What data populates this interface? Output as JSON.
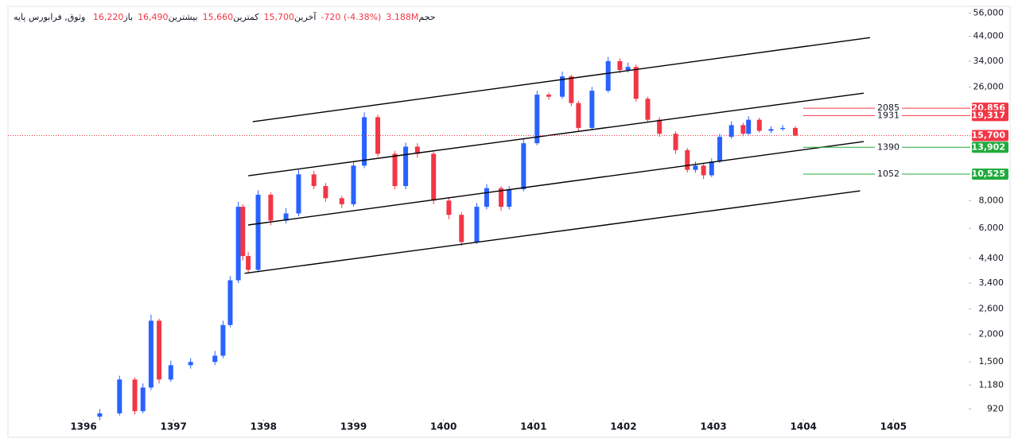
{
  "chart_data": {
    "type": "candlestick",
    "symbol": "وثوق, فرابورس پایه",
    "header": [
      {
        "value": "16,220",
        "label": "باز"
      },
      {
        "value": "16,490",
        "label": "بیشترین"
      },
      {
        "value": "15,660",
        "label": "کمترین"
      },
      {
        "value": "15,700",
        "label": "آخرین"
      },
      {
        "value": "-720 (-4.38%)"
      },
      {
        "value": "3.188M",
        "label": "حجم"
      }
    ],
    "x": [
      1396.18,
      1396.4,
      1396.57,
      1396.66,
      1396.75,
      1396.84,
      1396.97,
      1397.19,
      1397.46,
      1397.55,
      1397.63,
      1397.72,
      1397.77,
      1397.83,
      1397.94,
      1398.08,
      1398.25,
      1398.39,
      1398.56,
      1398.69,
      1398.87,
      1399.0,
      1399.12,
      1399.27,
      1399.46,
      1399.58,
      1399.71,
      1399.89,
      1400.06,
      1400.2,
      1400.37,
      1400.48,
      1400.64,
      1400.73,
      1400.89,
      1401.04,
      1401.17,
      1401.32,
      1401.42,
      1401.5,
      1401.65,
      1401.83,
      1401.96,
      1402.05,
      1402.14,
      1402.27,
      1402.4,
      1402.58,
      1402.71,
      1402.8,
      1402.89,
      1402.98,
      1403.07,
      1403.2,
      1403.33,
      1403.39,
      1403.51,
      1403.64,
      1403.77,
      1403.91
    ],
    "open": [
      850,
      880,
      1250,
      900,
      1150,
      2300,
      1250,
      1450,
      1500,
      1600,
      2200,
      3500,
      7500,
      4500,
      3900,
      8500,
      6500,
      7000,
      10500,
      9300,
      8200,
      7700,
      11500,
      19000,
      13000,
      9300,
      14000,
      13000,
      8000,
      6900,
      5200,
      7500,
      9100,
      7500,
      9000,
      14500,
      24000,
      23500,
      29000,
      22000,
      17000,
      25000,
      34000,
      31000,
      32000,
      23000,
      18500,
      16000,
      13500,
      11000,
      11500,
      10400,
      12000,
      15500,
      17500,
      16000,
      18500,
      16500,
      16800,
      17000
    ],
    "high": [
      920,
      1300,
      1280,
      1200,
      2450,
      2350,
      1520,
      1560,
      1680,
      2300,
      3650,
      7900,
      7700,
      4700,
      8900,
      8700,
      7400,
      11000,
      10900,
      9600,
      8400,
      12000,
      20000,
      19500,
      13400,
      14600,
      14500,
      13300,
      8300,
      7100,
      7800,
      9500,
      9300,
      9300,
      15200,
      25000,
      24500,
      30500,
      29500,
      22500,
      26000,
      35500,
      35000,
      33500,
      32800,
      23500,
      19000,
      16400,
      13800,
      12000,
      11800,
      12400,
      16000,
      18200,
      17900,
      19200,
      18900,
      17300,
      17500,
      17300
    ],
    "low": [
      820,
      860,
      870,
      880,
      1120,
      1200,
      1220,
      1400,
      1450,
      1560,
      2150,
      3400,
      4300,
      3750,
      3800,
      6200,
      6300,
      6800,
      9000,
      7900,
      7400,
      7500,
      11200,
      12600,
      9000,
      9000,
      12500,
      7700,
      6600,
      5000,
      5100,
      7300,
      7200,
      7300,
      8800,
      14200,
      22800,
      23000,
      21300,
      16500,
      16700,
      24500,
      30000,
      30200,
      22300,
      18000,
      15500,
      13000,
      10700,
      10700,
      10000,
      10200,
      11800,
      15200,
      15600,
      15800,
      16200,
      16100,
      16500,
      15600
    ],
    "close": [
      880,
      1250,
      900,
      1150,
      2300,
      1250,
      1450,
      1500,
      1600,
      2200,
      3500,
      7500,
      4500,
      3900,
      8500,
      6500,
      7000,
      10500,
      9300,
      8200,
      7700,
      11500,
      19000,
      13000,
      9300,
      14000,
      13000,
      8000,
      6900,
      5200,
      7500,
      9100,
      7500,
      9000,
      14500,
      24000,
      23500,
      29000,
      22000,
      17000,
      25000,
      34000,
      31000,
      32000,
      23000,
      18500,
      16000,
      13500,
      11000,
      11500,
      10400,
      12000,
      15500,
      17500,
      16000,
      18500,
      16500,
      16800,
      17000,
      15700
    ],
    "up_color": "#2962ff",
    "down_color": "#f23645",
    "log_scale": true,
    "xlim": [
      1395.16,
      1405.81
    ],
    "xticks": [
      1396,
      1397,
      1398,
      1399,
      1400,
      1401,
      1402,
      1403,
      1404,
      1405
    ],
    "ylim": [
      830,
      60000
    ],
    "yticks": [
      {
        "value": 920,
        "label": "920"
      },
      {
        "value": 1180,
        "label": "1,180"
      },
      {
        "value": 1500,
        "label": "1,500"
      },
      {
        "value": 2000,
        "label": "2,000"
      },
      {
        "value": 2600,
        "label": "2,600"
      },
      {
        "value": 3400,
        "label": "3,400"
      },
      {
        "value": 4400,
        "label": "4,400"
      },
      {
        "value": 6000,
        "label": "6,000"
      },
      {
        "value": 8000,
        "label": "8,000"
      },
      {
        "value": 26000,
        "label": "26,000"
      },
      {
        "value": 34000,
        "label": "34,000"
      },
      {
        "value": 44000,
        "label": "44,000"
      },
      {
        "value": 56000,
        "label": "56,000"
      }
    ],
    "trend_lines": [
      {
        "x": [
          1397.88,
          1404.74
        ],
        "y": [
          18130,
          43400
        ]
      },
      {
        "x": [
          1397.83,
          1404.67
        ],
        "y": [
          10350,
          24390
        ]
      },
      {
        "x": [
          1397.83,
          1404.67
        ],
        "y": [
          6210,
          14750
        ]
      },
      {
        "x": [
          1397.79,
          1404.63
        ],
        "y": [
          3760,
          8850
        ]
      }
    ],
    "levels": [
      {
        "name": "2085",
        "value": 20856,
        "value_label": "20,856",
        "color": "#f23645"
      },
      {
        "name": "1931",
        "value": 19317,
        "value_label": "19,317",
        "color": "#f23645"
      },
      {
        "name": "1390",
        "value": 13902,
        "value_label": "13,902",
        "color": "#22ab3c"
      },
      {
        "name": "1052",
        "value": 10525,
        "value_label": "10,525",
        "color": "#22ab3c"
      }
    ],
    "last_price": {
      "value": 15700,
      "label": "15,700",
      "color": "#f23645"
    }
  }
}
